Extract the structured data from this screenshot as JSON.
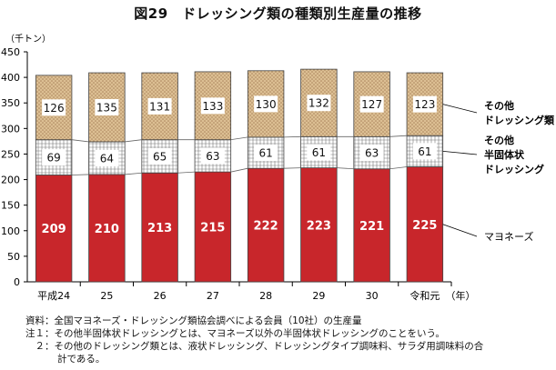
{
  "title": "図29　ドレッシング類の種類別生産量の推移",
  "unit_label": "（千トン）",
  "chart_data": {
    "type": "bar",
    "stacked": true,
    "categories": [
      "平成24",
      "25",
      "26",
      "27",
      "28",
      "29",
      "30",
      "令和元"
    ],
    "x_suffix": "（年）",
    "ylim": [
      0,
      450
    ],
    "yticks": [
      0,
      50,
      100,
      150,
      200,
      250,
      300,
      350,
      400,
      450
    ],
    "grid": false,
    "series": [
      {
        "name": "マヨネーズ",
        "values": [
          209,
          210,
          213,
          215,
          222,
          223,
          221,
          225
        ],
        "color": "#c8262b"
      },
      {
        "name": "その他\n半固体状\nドレッシング",
        "values": [
          69,
          64,
          65,
          63,
          61,
          61,
          63,
          61
        ],
        "color": "#ffffff"
      },
      {
        "name": "その他\nドレッシング類",
        "values": [
          126,
          135,
          131,
          133,
          130,
          132,
          127,
          123
        ],
        "color": "#d9b98a"
      }
    ]
  },
  "notes": [
    "資料：全国マヨネーズ・ドレッシング類協会調べによる会員（10社）の生産量",
    "注１：その他半固体状ドレッシングとは、マヨネーズ以外の半固体状ドレッシングのことをいう。",
    "　２：その他のドレッシング類とは、液状ドレッシング、ドレッシングタイプ調味料、サラダ用調味料の合",
    "計である。"
  ]
}
